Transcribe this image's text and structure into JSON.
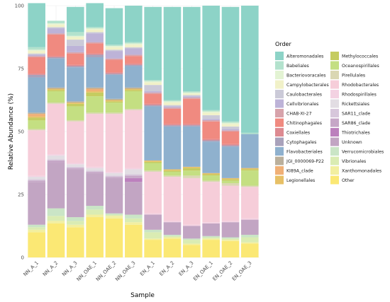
{
  "chart_data": {
    "type": "bar",
    "stacked": true,
    "xlabel": "Sample",
    "ylabel": "Relative Abundance (%)",
    "ylim": [
      0,
      100
    ],
    "yticks": [
      0,
      25,
      50,
      75,
      100
    ],
    "grid": true,
    "legend_title": "Order",
    "legend_position": "right",
    "categories": [
      "NN_A_1",
      "NN_A_2",
      "NN_A_3",
      "NN_OAE_1",
      "NN_OAE_2",
      "NN_OAE_3",
      "EN_A_1",
      "EN_A_2",
      "EN_A_3",
      "EN_OAE_1",
      "EN_OAE_2",
      "EN_OAE_3"
    ],
    "legend": [
      {
        "name": "Alteromonadales",
        "color": "#8dd3c7"
      },
      {
        "name": "Babeliales",
        "color": "#b3e2cd"
      },
      {
        "name": "Bacteriovoracales",
        "color": "#e3f3d3"
      },
      {
        "name": "Campylobacterales",
        "color": "#f1f1c8"
      },
      {
        "name": "Caulobacterales",
        "color": "#cbcad8"
      },
      {
        "name": "Cellvibrionales",
        "color": "#bdb3d8"
      },
      {
        "name": "CHAB-XI-27",
        "color": "#d7a3ab"
      },
      {
        "name": "Chitinophagales",
        "color": "#f08a80"
      },
      {
        "name": "Coxiellales",
        "color": "#dd8a91"
      },
      {
        "name": "Cytophagales",
        "color": "#a9a2bb"
      },
      {
        "name": "Flavobacteriales",
        "color": "#8fb1ce"
      },
      {
        "name": "JGI_0000069-P22",
        "color": "#bbb09c"
      },
      {
        "name": "KI89A_clade",
        "color": "#f0b076"
      },
      {
        "name": "Legionellales",
        "color": "#e7c066"
      },
      {
        "name": "Methylococcales",
        "color": "#c5cc60"
      },
      {
        "name": "Oceanospirillales",
        "color": "#c4df82"
      },
      {
        "name": "Pirellulales",
        "color": "#dad7b3"
      },
      {
        "name": "Rhodobacterales",
        "color": "#f6cdd9"
      },
      {
        "name": "Rhodospirillales",
        "color": "#f3d2e2"
      },
      {
        "name": "Rickettsiales",
        "color": "#e2dde3"
      },
      {
        "name": "SAR11_clade",
        "color": "#d7c7db"
      },
      {
        "name": "SAR86_clade",
        "color": "#c6a7c7"
      },
      {
        "name": "Thiotrichales",
        "color": "#bc80bd"
      },
      {
        "name": "Unknown",
        "color": "#c2a5c3"
      },
      {
        "name": "Verrucomicrobiales",
        "color": "#cae5c6"
      },
      {
        "name": "Vibrionales",
        "color": "#daecb3"
      },
      {
        "name": "Xanthomonadales",
        "color": "#f2efa0"
      },
      {
        "name": "Other",
        "color": "#fbe874"
      }
    ],
    "stack_order_bottom_to_top": [
      "Other",
      "Xanthomonadales",
      "Vibrionales",
      "Verrucomicrobiales",
      "Unknown",
      "Thiotrichales",
      "SAR86_clade",
      "SAR11_clade",
      "Rickettsiales",
      "Rhodospirillales",
      "Rhodobacterales",
      "Pirellulales",
      "Oceanospirillales",
      "Methylococcales",
      "Legionellales",
      "KI89A_clade",
      "JGI_0000069-P22",
      "Flavobacteriales",
      "Cytophagales",
      "Coxiellales",
      "Chitinophagales",
      "CHAB-XI-27",
      "Cellvibrionales",
      "Caulobacterales",
      "Campylobacterales",
      "Bacteriovoracales",
      "Babeliales",
      "Alteromonadales"
    ],
    "series": [
      {
        "name": "Other",
        "values": [
          10,
          13.5,
          12,
          16,
          15.5,
          13,
          7,
          7.5,
          5,
          7,
          6.5,
          5.5
        ]
      },
      {
        "name": "Xanthomonadales",
        "values": [
          1,
          1,
          1,
          1,
          1,
          1,
          0.5,
          0.5,
          0.5,
          0.5,
          0.5,
          0.5
        ]
      },
      {
        "name": "Vibrionales",
        "values": [
          1,
          2,
          1.5,
          2,
          0.5,
          1.5,
          2.5,
          0.5,
          1.5,
          0.5,
          0.5,
          2
        ]
      },
      {
        "name": "Verrucomicrobiales",
        "values": [
          1,
          3,
          1.5,
          1.5,
          0.5,
          1.5,
          1,
          0.5,
          0.5,
          0.5,
          0.5,
          1
        ]
      },
      {
        "name": "Unknown",
        "values": [
          17,
          18,
          19,
          13,
          14,
          13,
          6,
          5,
          5,
          5,
          6,
          6
        ]
      },
      {
        "name": "Thiotrichales",
        "values": [
          0,
          0,
          0,
          0,
          0,
          1.5,
          0,
          0,
          0,
          0,
          0,
          0
        ]
      },
      {
        "name": "SAR86_clade",
        "values": [
          0.5,
          1,
          0.5,
          0.5,
          0.5,
          1,
          0,
          0,
          0,
          0,
          0,
          0
        ]
      },
      {
        "name": "SAR11_clade",
        "values": [
          0.5,
          0.5,
          0.5,
          0.5,
          0.5,
          0.5,
          0,
          0,
          0,
          0,
          0,
          0
        ]
      },
      {
        "name": "Rickettsiales",
        "values": [
          1,
          1.5,
          1,
          1,
          1,
          2,
          0,
          0,
          0,
          0,
          0,
          0
        ]
      },
      {
        "name": "Rhodospirillales",
        "values": [
          0.5,
          0.5,
          0.5,
          0.5,
          0.5,
          0.5,
          0.5,
          0.5,
          0.5,
          0.5,
          0.5,
          0.5
        ]
      },
      {
        "name": "Rhodobacterales",
        "values": [
          18,
          20,
          16.5,
          21,
          23,
          23,
          16.5,
          17.5,
          18.5,
          16,
          14,
          12.5
        ]
      },
      {
        "name": "Pirellulales",
        "values": [
          0.5,
          0.5,
          0.5,
          0.5,
          0.5,
          0.5,
          0.5,
          0.5,
          1,
          0.5,
          1,
          0.5
        ]
      },
      {
        "name": "Oceanospirillales",
        "values": [
          3.5,
          4.5,
          5.5,
          6.5,
          4,
          7,
          3,
          1.5,
          2,
          2,
          1,
          6
        ]
      },
      {
        "name": "Methylococcales",
        "values": [
          1,
          0.5,
          1,
          1.5,
          0.5,
          0.5,
          0.5,
          0.5,
          1,
          0.5,
          0.5,
          0.5
        ]
      },
      {
        "name": "Legionellales",
        "values": [
          0.5,
          0.5,
          0.5,
          0.5,
          0.5,
          0.5,
          0.5,
          0.5,
          0.5,
          0.5,
          0.5,
          0.5
        ]
      },
      {
        "name": "KI89A_clade",
        "values": [
          1,
          0,
          0,
          1,
          0,
          0,
          0,
          0,
          0,
          0,
          0,
          0
        ]
      },
      {
        "name": "JGI_0000069-P22",
        "values": [
          0.5,
          0.5,
          0.5,
          0.5,
          0.5,
          0.5,
          0,
          0,
          0,
          0,
          0,
          0
        ]
      },
      {
        "name": "Flavobacteriales",
        "values": [
          14,
          11.5,
          13.5,
          12,
          9.5,
          8.5,
          21.5,
          17,
          16,
          12.5,
          12.5,
          13.5
        ]
      },
      {
        "name": "Cytophagales",
        "values": [
          1,
          0.5,
          0.5,
          1,
          0.5,
          0.5,
          0.5,
          0.5,
          0.5,
          0.5,
          0.5,
          0
        ]
      },
      {
        "name": "Coxiellales",
        "values": [
          0.5,
          0.5,
          0.5,
          0.5,
          0.5,
          0.5,
          0.5,
          0.5,
          0.5,
          0.5,
          0.5,
          0
        ]
      },
      {
        "name": "Chitinophagales",
        "values": [
          6.5,
          8.5,
          4.5,
          4,
          5,
          3,
          4,
          6,
          10,
          7,
          5,
          0
        ]
      },
      {
        "name": "CHAB-XI-27",
        "values": [
          0.5,
          0.5,
          0.5,
          0.5,
          0.5,
          0.5,
          0.5,
          0.5,
          0.5,
          0.5,
          0.5,
          0
        ]
      },
      {
        "name": "Cellvibrionales",
        "values": [
          0.5,
          2,
          2.5,
          3.5,
          3,
          2.5,
          0.5,
          0.5,
          0.5,
          0.5,
          0.5,
          0
        ]
      },
      {
        "name": "Caulobacterales",
        "values": [
          0.5,
          0.5,
          2.5,
          0.5,
          0.5,
          0.5,
          2.5,
          0.5,
          0.5,
          1.5,
          1,
          0
        ]
      },
      {
        "name": "Campylobacterales",
        "values": [
          1,
          1,
          1,
          1,
          1,
          1,
          1,
          1,
          0.5,
          1,
          1,
          0
        ]
      },
      {
        "name": "Bacteriovoracales",
        "values": [
          0.5,
          0.5,
          0.5,
          0.5,
          0.5,
          0.5,
          0.5,
          0.5,
          0.5,
          0.5,
          0.5,
          0
        ]
      },
      {
        "name": "Babeliales",
        "values": [
          1,
          1,
          1.5,
          0.5,
          0.5,
          0.5,
          0.5,
          0.5,
          0.5,
          0.5,
          0.5,
          0.5
        ]
      },
      {
        "name": "Alteromonadales",
        "values": [
          17.5,
          0,
          10,
          9.5,
          14.5,
          14.5,
          29,
          37,
          33.5,
          41.5,
          45.5,
          50.5
        ]
      }
    ]
  }
}
